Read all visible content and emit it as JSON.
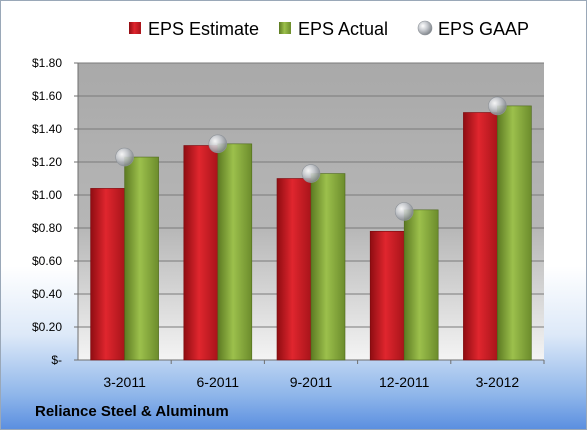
{
  "chart_data": {
    "type": "bar",
    "categories": [
      "3-2011",
      "6-2011",
      "9-2011",
      "12-2011",
      "3-2012"
    ],
    "series": [
      {
        "name": "EPS Estimate",
        "values": [
          1.04,
          1.3,
          1.1,
          0.78,
          1.5
        ],
        "color": "#d0202a"
      },
      {
        "name": "EPS Actual",
        "values": [
          1.23,
          1.31,
          1.13,
          0.91,
          1.54
        ],
        "color": "#86a83c"
      }
    ],
    "markers": {
      "name": "EPS GAAP",
      "values": [
        1.23,
        1.31,
        1.13,
        0.9,
        1.54
      ],
      "color": "#b4b8be"
    },
    "ylim": [
      0,
      1.8
    ],
    "yticks": [
      0,
      0.2,
      0.4,
      0.6,
      0.8,
      1.0,
      1.2,
      1.4,
      1.6,
      1.8
    ],
    "ytick_labels": [
      "$-",
      "$0.20",
      "$0.40",
      "$0.60",
      "$0.80",
      "$1.00",
      "$1.20",
      "$1.40",
      "$1.60",
      "$1.80"
    ],
    "grid": true,
    "legend_position": "top",
    "title": "",
    "xlabel": "",
    "ylabel": ""
  },
  "footer": {
    "company": "Reliance Steel & Aluminum"
  }
}
